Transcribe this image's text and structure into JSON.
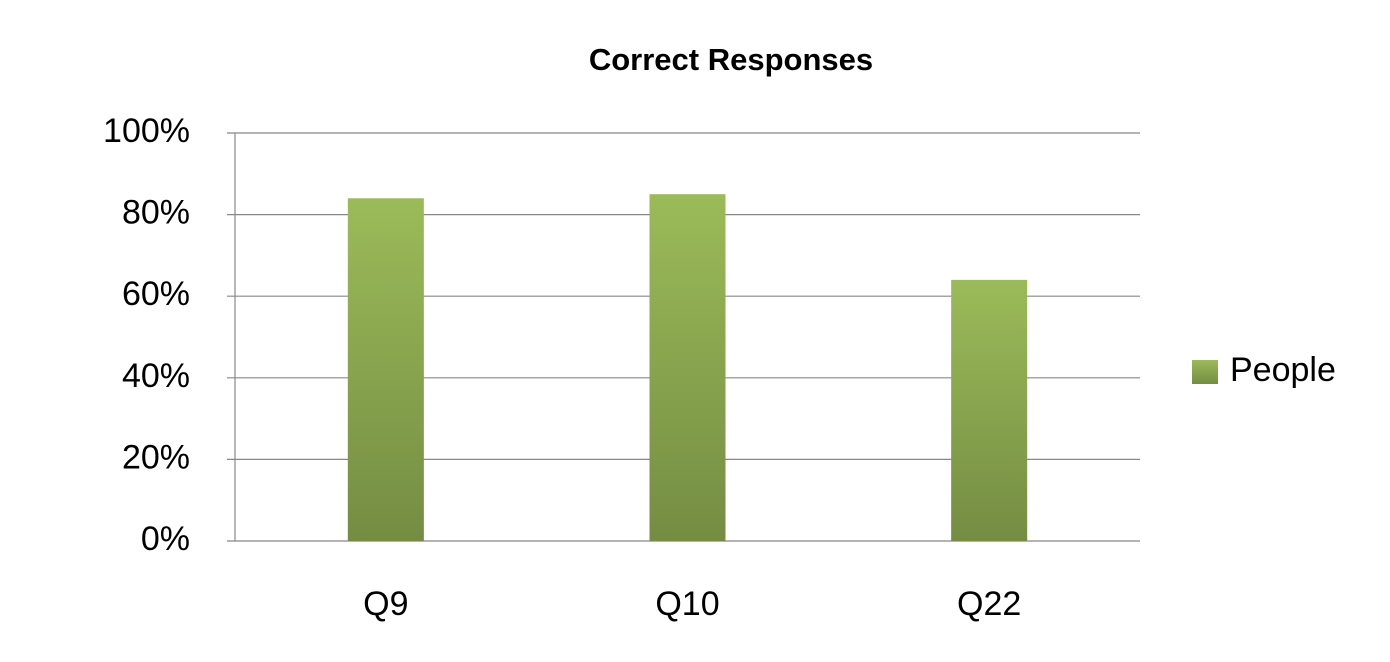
{
  "chart_data": {
    "type": "bar",
    "title": "Correct Responses",
    "categories": [
      "Q9",
      "Q10",
      "Q22"
    ],
    "series": [
      {
        "name": "People",
        "color": "#9bbb59",
        "values": [
          84,
          85,
          64
        ]
      }
    ],
    "ylim": [
      0,
      100
    ],
    "yticks": [
      {
        "value": 0,
        "label": "0%"
      },
      {
        "value": 20,
        "label": "20%"
      },
      {
        "value": 40,
        "label": "40%"
      },
      {
        "value": 60,
        "label": "60%"
      },
      {
        "value": 80,
        "label": "80%"
      },
      {
        "value": 100,
        "label": "100%"
      }
    ],
    "grid": true,
    "legend": "right"
  }
}
